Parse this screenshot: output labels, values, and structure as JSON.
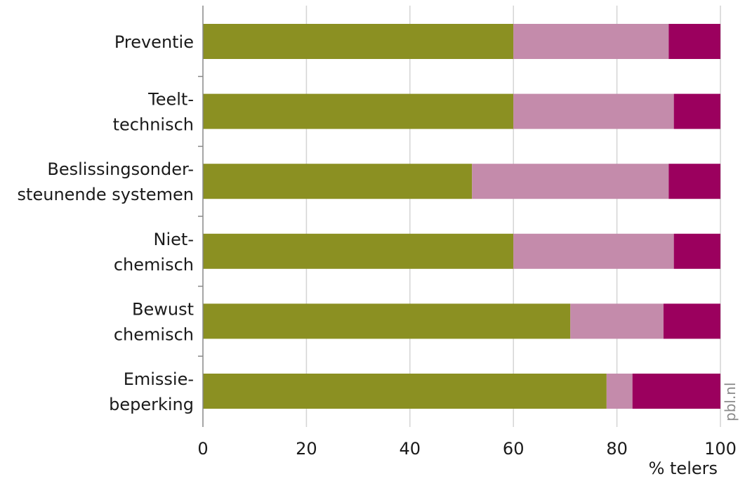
{
  "chart_data": {
    "type": "bar",
    "orientation": "horizontal",
    "stacked": true,
    "categories": [
      [
        "Preventie"
      ],
      [
        "Teelt-",
        "technisch"
      ],
      [
        "Beslissingsonder-",
        "steunende systemen"
      ],
      [
        "Niet-",
        "chemisch"
      ],
      [
        "Bewust",
        "chemisch"
      ],
      [
        "Emissie-",
        "beperking"
      ]
    ],
    "series": [
      {
        "values": [
          60,
          60,
          52,
          60,
          71,
          78
        ],
        "color": "#8b9022"
      },
      {
        "values": [
          30,
          31,
          38,
          31,
          18,
          5
        ],
        "color": "#c48bab"
      },
      {
        "values": [
          10,
          9,
          10,
          9,
          11,
          17
        ],
        "color": "#9b005e"
      }
    ],
    "xlim": [
      0,
      100
    ],
    "xticks": [
      0,
      20,
      40,
      60,
      80,
      100
    ],
    "xlabel": "% telers",
    "grid": true,
    "source": "pbl.nl"
  }
}
